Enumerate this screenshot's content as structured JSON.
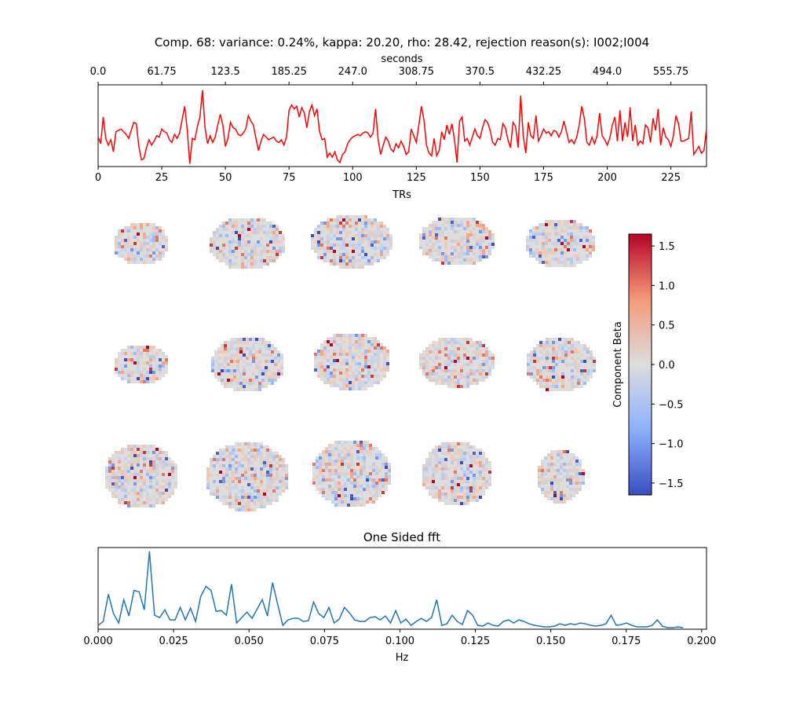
{
  "figure_title": "Comp. 68: variance: 0.24%, kappa: 20.20, rho: 28.42, rejection reason(s): I002;I004",
  "colors": {
    "timeseries": "#ff0000",
    "fft": "#1f77b4",
    "cmap_low": "#3b4cc0",
    "cmap_mid": "#dddddd",
    "cmap_high": "#b40426"
  },
  "brain_grid": {
    "rows": 3,
    "cols": 5,
    "views": [
      "sagittal",
      "coronal",
      "axial"
    ]
  },
  "chart_data": [
    {
      "type": "line",
      "name": "timeseries",
      "xlabel": "TRs",
      "xlim": [
        0,
        239
      ],
      "xticks": [
        "0",
        "25",
        "50",
        "75",
        "100",
        "125",
        "150",
        "175",
        "200",
        "225"
      ],
      "xtick_values": [
        0,
        25,
        50,
        75,
        100,
        125,
        150,
        175,
        200,
        225
      ],
      "secondary_xlabel": "seconds",
      "secondary_xticks": [
        "0.0",
        "61.75",
        "123.5",
        "185.25",
        "247.0",
        "308.75",
        "370.5",
        "432.25",
        "494.0",
        "555.75"
      ],
      "ylim": [
        -2.5,
        3.6
      ],
      "y": [
        -0.3,
        -0.8,
        1.2,
        -0.4,
        -0.9,
        -0.5,
        -1.4,
        0.1,
        0.2,
        0.3,
        0.1,
        -0.1,
        -0.4,
        0.2,
        0.8,
        0.7,
        -1.0,
        -2.0,
        -1.9,
        -1.1,
        -0.5,
        -0.9,
        -0.6,
        -0.2,
        -0.3,
        0.3,
        0.1,
        0.0,
        -0.5,
        -0.7,
        -0.1,
        -0.4,
        0.0,
        1.0,
        2.0,
        0.3,
        -2.3,
        -0.4,
        -0.5,
        0.5,
        1.2,
        3.2,
        0.4,
        -0.8,
        -0.2,
        -0.7,
        -0.3,
        0.6,
        1.4,
        0.6,
        -1.0,
        -0.4,
        0.8,
        0.4,
        0.3,
        -0.1,
        -0.2,
        0.0,
        0.3,
        1.3,
        0.9,
        0.6,
        -0.4,
        -1.3,
        -0.6,
        -0.1,
        -0.3,
        -0.5,
        -0.4,
        -0.3,
        -0.6,
        -0.7,
        -0.5,
        -0.9,
        -0.3,
        1.7,
        2.1,
        1.8,
        2.0,
        1.2,
        1.9,
        1.5,
        0.4,
        1.6,
        2.1,
        1.3,
        1.8,
        0.1,
        -0.5,
        -0.4,
        -1.8,
        -1.5,
        -1.8,
        -1.4,
        -2.0,
        -2.2,
        -1.6,
        -1.4,
        -0.8,
        -0.5,
        -0.3,
        -0.2,
        -0.1,
        -0.2,
        0.0,
        0.1,
        0.0,
        -0.3,
        0.0,
        1.8,
        -0.5,
        -1.6,
        -0.9,
        -0.3,
        -0.6,
        -1.2,
        -1.4,
        -0.8,
        -1.1,
        -0.6,
        -1.0,
        -1.6,
        -1.4,
        0.3,
        -0.2,
        -0.7,
        0.6,
        2.0,
        1.0,
        -0.9,
        -1.5,
        -1.7,
        -0.4,
        -1.7,
        -1.3,
        0.1,
        -0.5,
        0.6,
        -0.1,
        0.7,
        -0.5,
        -2.2,
        0.9,
        1.2,
        -0.6,
        -0.4,
        -0.9,
        -0.3,
        0.3,
        -0.2,
        -0.4,
        0.4,
        1.0,
        0.8,
        0.2,
        -0.7,
        -0.9,
        -0.4,
        -0.5,
        0.7,
        0.4,
        -0.5,
        -1.1,
        0.8,
        0.5,
        -1.1,
        2.8,
        -0.2,
        -1.5,
        0.8,
        -0.2,
        -0.4,
        1.3,
        -0.6,
        -0.2,
        0.3,
        0.0,
        0.1,
        -0.2,
        0.2,
        0.1,
        -0.3,
        0.1,
        0.9,
        0.1,
        -0.7,
        -0.5,
        -0.8,
        -0.3,
        0.6,
        2.0,
        1.1,
        -0.7,
        -0.9,
        -0.3,
        -0.8,
        -0.2,
        1.5,
        -0.2,
        -0.5,
        -0.9,
        -0.4,
        0.6,
        1.2,
        -0.6,
        1.7,
        -0.6,
        0.8,
        -0.3,
        1.9,
        -0.6,
        0.6,
        -0.9,
        -0.6,
        -0.8,
        0.6,
        0.4,
        -0.7,
        1.1,
        0.2,
        1.8,
        -0.9,
        0.4,
        -0.3,
        -0.5,
        -1.0,
        -0.2,
        1.3,
        0.7,
        -0.6,
        -0.6,
        -0.5,
        -0.4,
        1.6,
        -1.6,
        -1.3,
        -1.0,
        -1.5,
        -1.3,
        0.3
      ]
    },
    {
      "type": "heatmap",
      "name": "component-beta-colorbar",
      "label": "Component Beta",
      "range": [
        -1.65,
        1.65
      ],
      "ticks": [
        "1.5",
        "1.0",
        "0.5",
        "0.0",
        "−0.5",
        "−1.0",
        "−1.5"
      ],
      "tick_values": [
        1.5,
        1.0,
        0.5,
        0.0,
        -0.5,
        -1.0,
        -1.5
      ]
    },
    {
      "type": "line",
      "name": "fft",
      "title": "One Sided fft",
      "xlabel": "Hz",
      "xlim": [
        0,
        0.2016
      ],
      "xticks": [
        "0.000",
        "0.025",
        "0.050",
        "0.075",
        "0.100",
        "0.125",
        "0.150",
        "0.175",
        "0.200"
      ],
      "xtick_values": [
        0,
        0.025,
        0.05,
        0.075,
        0.1,
        0.125,
        0.15,
        0.175,
        0.2
      ],
      "x_step": 0.0017,
      "ylim": [
        0,
        1.05
      ],
      "y": [
        0.05,
        0.1,
        0.45,
        0.2,
        0.08,
        0.38,
        0.17,
        0.5,
        0.48,
        0.25,
        1.0,
        0.18,
        0.15,
        0.25,
        0.12,
        0.12,
        0.28,
        0.12,
        0.27,
        0.1,
        0.42,
        0.55,
        0.5,
        0.23,
        0.24,
        0.18,
        0.58,
        0.08,
        0.15,
        0.22,
        0.14,
        0.26,
        0.38,
        0.17,
        0.6,
        0.32,
        0.05,
        0.12,
        0.14,
        0.14,
        0.1,
        0.11,
        0.35,
        0.2,
        0.15,
        0.28,
        0.08,
        0.13,
        0.28,
        0.21,
        0.12,
        0.1,
        0.1,
        0.15,
        0.16,
        0.12,
        0.17,
        0.08,
        0.24,
        0.08,
        0.13,
        0.05,
        0.1,
        0.14,
        0.1,
        0.15,
        0.38,
        0.05,
        0.07,
        0.18,
        0.1,
        0.06,
        0.24,
        0.18,
        0.05,
        0.04,
        0.08,
        0.05,
        0.04,
        0.1,
        0.12,
        0.08,
        0.12,
        0.1,
        0.07,
        0.05,
        0.04,
        0.03,
        0.03,
        0.04,
        0.07,
        0.05,
        0.07,
        0.06,
        0.08,
        0.07,
        0.05,
        0.04,
        0.05,
        0.07,
        0.18,
        0.05,
        0.06,
        0.08,
        0.05,
        0.03,
        0.03,
        0.03,
        0.05,
        0.12,
        0.04,
        0.02,
        0.02,
        0.03,
        0.02
      ]
    }
  ]
}
